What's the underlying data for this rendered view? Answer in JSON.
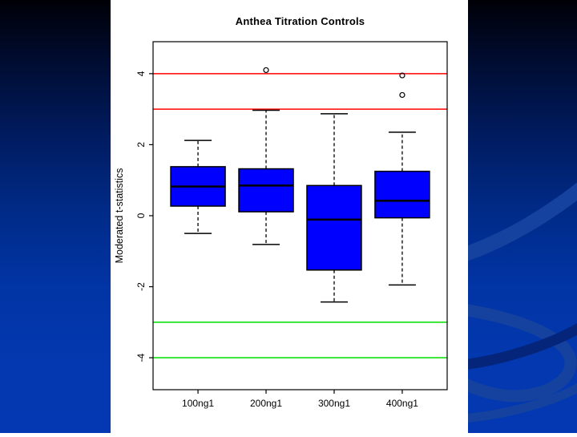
{
  "colors": {
    "box_fill": "#0000ff",
    "box_border": "#000000",
    "ref_high_color": "#ff0000",
    "ref_low_color": "#00dd00",
    "panel_background": "#ffffff",
    "axis_color": "#000000"
  },
  "chart_data": {
    "type": "boxplot",
    "title": "Anthea Titration Controls",
    "ylabel": "Moderated t-statistics",
    "xlabel": "",
    "categories": [
      "100ng1",
      "200ng1",
      "300ng1",
      "400ng1"
    ],
    "yticks": [
      4,
      2,
      0,
      -2,
      -4
    ],
    "ylim": [
      -4.9,
      4.9
    ],
    "grid": false,
    "legend": "none",
    "ref_lines": [
      {
        "y": 4,
        "color": "#ff0000"
      },
      {
        "y": 3,
        "color": "#ff0000"
      },
      {
        "y": -3,
        "color": "#00dd00"
      },
      {
        "y": -4,
        "color": "#00dd00"
      }
    ],
    "series": [
      {
        "label": "100ng1",
        "whisker_low": -0.5,
        "q1": 0.27,
        "median": 0.82,
        "q3": 1.38,
        "whisker_high": 2.12,
        "outliers": []
      },
      {
        "label": "200ng1",
        "whisker_low": -0.81,
        "q1": 0.11,
        "median": 0.85,
        "q3": 1.32,
        "whisker_high": 2.97,
        "outliers": [
          4.1
        ]
      },
      {
        "label": "300ng1",
        "whisker_low": -2.43,
        "q1": -1.53,
        "median": -0.11,
        "q3": 0.85,
        "whisker_high": 2.87,
        "outliers": []
      },
      {
        "label": "400ng1",
        "whisker_low": -1.95,
        "q1": -0.06,
        "median": 0.42,
        "q3": 1.25,
        "whisker_high": 2.35,
        "outliers": [
          3.95,
          3.4
        ]
      }
    ]
  }
}
